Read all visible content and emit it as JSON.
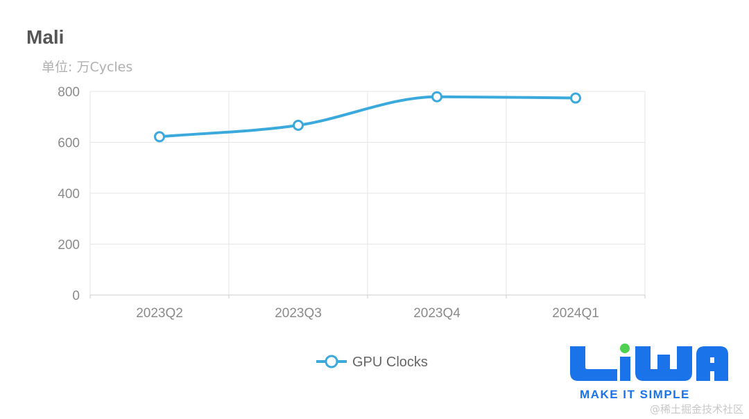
{
  "chart_data": {
    "type": "line",
    "title": "Mali",
    "ylabel": "单位: 万Cycles",
    "categories": [
      "2023Q2",
      "2023Q3",
      "2023Q4",
      "2024Q1"
    ],
    "series": [
      {
        "name": "GPU Clocks",
        "values": [
          622,
          667,
          779,
          774
        ]
      }
    ],
    "yticks": [
      "0",
      "200",
      "400",
      "600",
      "800"
    ],
    "ylim": [
      0,
      800
    ],
    "grid": true,
    "smooth": true,
    "legend": "bottom-center"
  },
  "colors": {
    "series": "#3ba9dc",
    "grid": "#e6e6e6",
    "axis": "#cccccc",
    "logo_blue": "#1a73e8",
    "logo_green": "#4fd14f"
  },
  "logo": {
    "letters": "LiWA",
    "tagline": "MAKE IT SIMPLE"
  },
  "watermark": "@稀土掘金技术社区"
}
